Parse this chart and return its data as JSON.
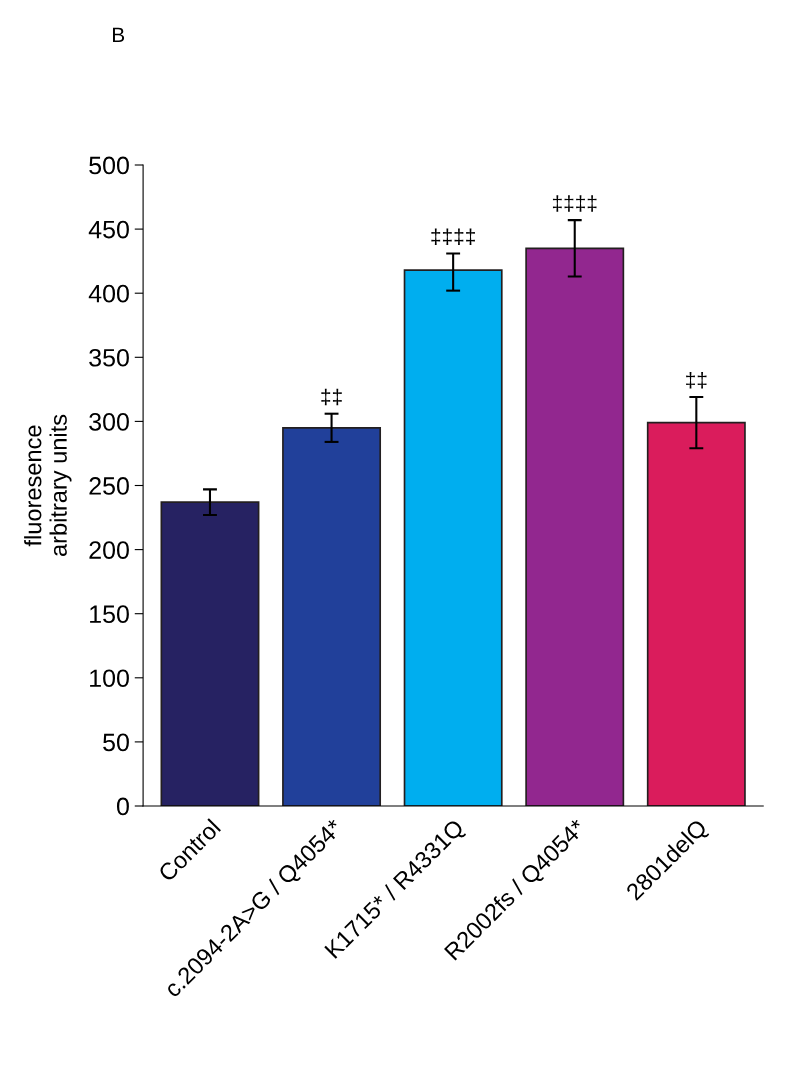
{
  "chart_data": {
    "type": "bar",
    "categories": [
      "Control",
      "c.2094-2A>G / Q4054*",
      "K1715* / R4331Q",
      "R2002fs / Q4054*",
      "2801delQ"
    ],
    "values": [
      237,
      295,
      418,
      435,
      299
    ],
    "errors": [
      [
        227,
        247
      ],
      [
        284,
        306
      ],
      [
        402,
        431
      ],
      [
        413,
        457
      ],
      [
        279,
        319
      ]
    ],
    "colors": [
      "#262262",
      "#21409a",
      "#00aeef",
      "#92278f",
      "#da1c5c"
    ],
    "ylabel": "fluoresence\narbitrary units",
    "ylim": [
      0,
      500
    ],
    "yticks": [
      0,
      50,
      100,
      150,
      200,
      250,
      300,
      350,
      400,
      450,
      500
    ],
    "grid": false,
    "legend": false,
    "annotations": [
      "B",
      {
        "text": "‡‡",
        "x": "c.2094-2A>G / Q4054*",
        "y": 306
      },
      {
        "text": "‡‡‡‡",
        "x": "K1715* / R4331Q",
        "y": 431
      },
      {
        "text": "‡‡‡‡",
        "x": "R2002fs / Q4054*",
        "y": 457
      },
      {
        "text": "‡‡",
        "x": "2801delQ",
        "y": 319
      }
    ]
  }
}
